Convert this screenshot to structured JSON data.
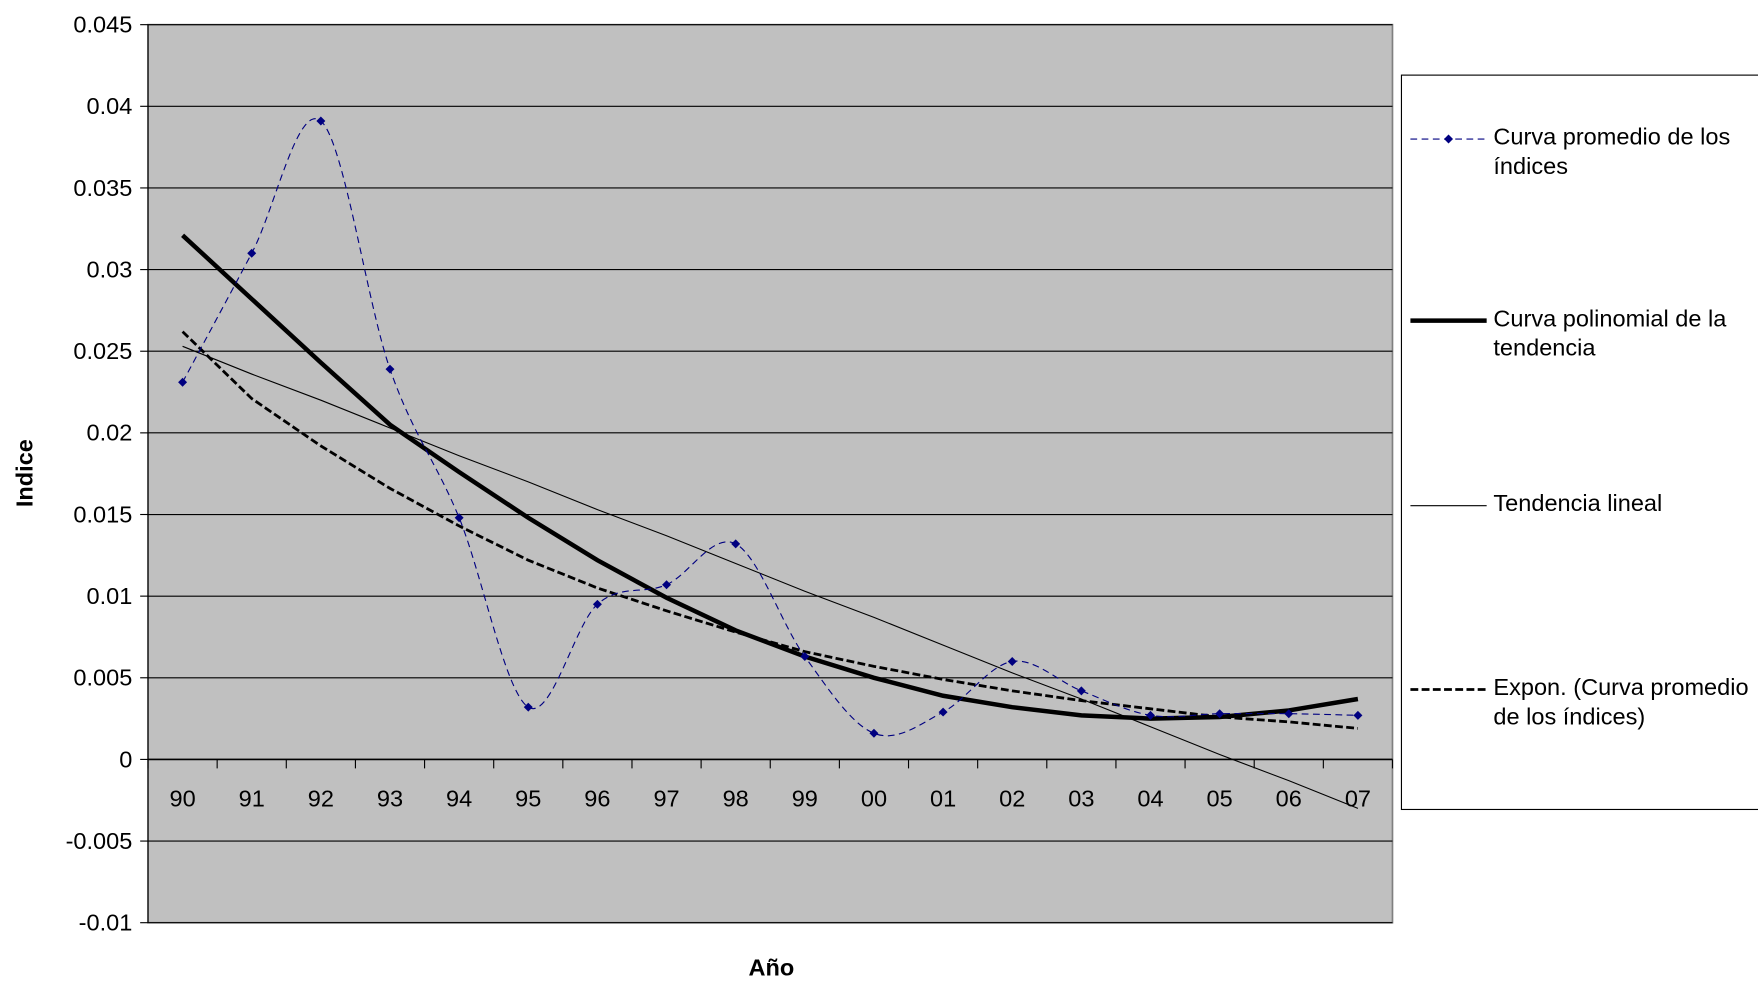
{
  "chart_data": {
    "type": "line",
    "y_label": "Indice",
    "x_label": "Año",
    "categories": [
      "90",
      "91",
      "92",
      "93",
      "94",
      "95",
      "96",
      "97",
      "98",
      "99",
      "00",
      "01",
      "02",
      "03",
      "04",
      "05",
      "06",
      "07"
    ],
    "ylim": [
      -0.01,
      0.045
    ],
    "yticks": [
      -0.01,
      -0.005,
      0,
      0.005,
      0.01,
      0.015,
      0.02,
      0.025,
      0.03,
      0.035,
      0.04,
      0.045
    ],
    "grid": true,
    "background": "#c0c0c0",
    "legend": "right",
    "series": [
      {
        "name": "Curva promedio de los índices",
        "color": "#000080",
        "style": "dashed-smooth-markers",
        "values": [
          0.0231,
          0.031,
          0.0391,
          0.0239,
          0.0148,
          0.0032,
          0.0095,
          0.0107,
          0.0132,
          0.0063,
          0.0016,
          0.0029,
          0.006,
          0.0042,
          0.0027,
          0.0028,
          0.0028,
          0.0027
        ]
      },
      {
        "name": "Curva polinomial de la tendencia",
        "color": "#000000",
        "style": "solid-thick",
        "values": [
          0.0321,
          0.0282,
          0.0243,
          0.0205,
          0.0176,
          0.0148,
          0.0122,
          0.0099,
          0.0079,
          0.0063,
          0.005,
          0.0039,
          0.0032,
          0.0027,
          0.0025,
          0.0026,
          0.003,
          0.0037
        ]
      },
      {
        "name": "Tendencia lineal",
        "color": "#000000",
        "style": "solid-thin",
        "values": [
          0.0253,
          0.0236,
          0.022,
          0.0203,
          0.0186,
          0.017,
          0.0153,
          0.0137,
          0.012,
          0.0103,
          0.0087,
          0.007,
          0.0053,
          0.0037,
          0.002,
          0.0003,
          -0.0013,
          -0.003
        ]
      },
      {
        "name": "Expon. (Curva promedio de los índices)",
        "color": "#000000",
        "style": "dashed-thick",
        "values": [
          0.0262,
          0.0221,
          0.0192,
          0.0166,
          0.0143,
          0.0122,
          0.0105,
          0.0091,
          0.0078,
          0.0066,
          0.0057,
          0.0049,
          0.0042,
          0.0036,
          0.0031,
          0.0026,
          0.0023,
          0.0019
        ]
      }
    ]
  }
}
